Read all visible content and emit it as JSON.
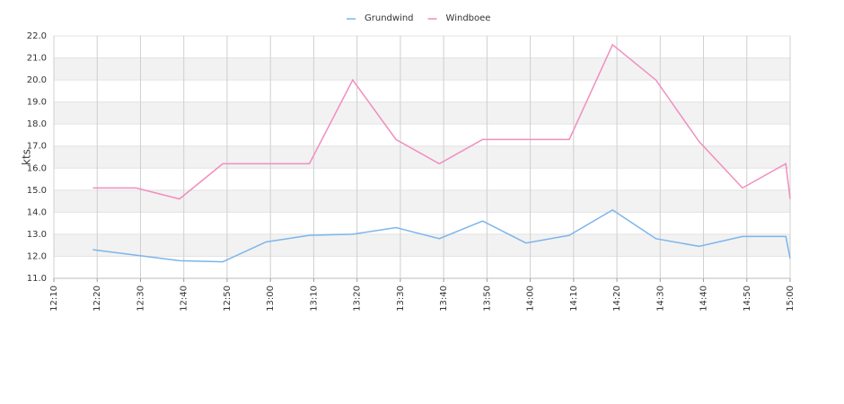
{
  "chart_data": {
    "type": "line",
    "y_label": "kts",
    "x": [
      "12:19",
      "12:29",
      "12:39",
      "12:49",
      "12:59",
      "13:09",
      "13:19",
      "13:29",
      "13:39",
      "13:49",
      "13:59",
      "14:09",
      "14:19",
      "14:29",
      "14:39",
      "14:49",
      "14:59",
      "15:00"
    ],
    "series": [
      {
        "name": "Grundwind",
        "color": "#7cb5ec",
        "values": [
          12.3,
          12.05,
          11.8,
          11.75,
          12.65,
          12.95,
          13.0,
          13.3,
          12.8,
          13.6,
          12.6,
          12.95,
          14.1,
          12.8,
          12.45,
          12.9,
          12.9,
          11.9
        ]
      },
      {
        "name": "Windboee",
        "color": "#f08ebf",
        "values": [
          15.1,
          15.1,
          14.6,
          16.2,
          16.2,
          16.2,
          20.0,
          17.3,
          16.2,
          17.3,
          17.3,
          17.3,
          21.6,
          20.0,
          17.2,
          15.1,
          16.2,
          14.6
        ]
      }
    ],
    "xlim": [
      "12:10",
      "15:00"
    ],
    "xticks": [
      "12:10",
      "12:20",
      "12:30",
      "12:40",
      "12:50",
      "13:00",
      "13:10",
      "13:20",
      "13:30",
      "13:40",
      "13:50",
      "14:00",
      "14:10",
      "14:20",
      "14:30",
      "14:40",
      "14:50",
      "15:00"
    ],
    "ylim": [
      11,
      22
    ],
    "yticks": [
      {
        "value": 11,
        "label": "11.0"
      },
      {
        "value": 12,
        "label": "12.0"
      },
      {
        "value": 13,
        "label": "13.0"
      },
      {
        "value": 14,
        "label": "14.0"
      },
      {
        "value": 15,
        "label": "15.0"
      },
      {
        "value": 16,
        "label": "16.0"
      },
      {
        "value": 17,
        "label": "17.0"
      },
      {
        "value": 18,
        "label": "18.0"
      },
      {
        "value": 19,
        "label": "19.0"
      },
      {
        "value": 20,
        "label": "20.0"
      },
      {
        "value": 21,
        "label": "21.0"
      },
      {
        "value": 22,
        "label": "22.0"
      }
    ],
    "grid": true,
    "legend": "top"
  }
}
